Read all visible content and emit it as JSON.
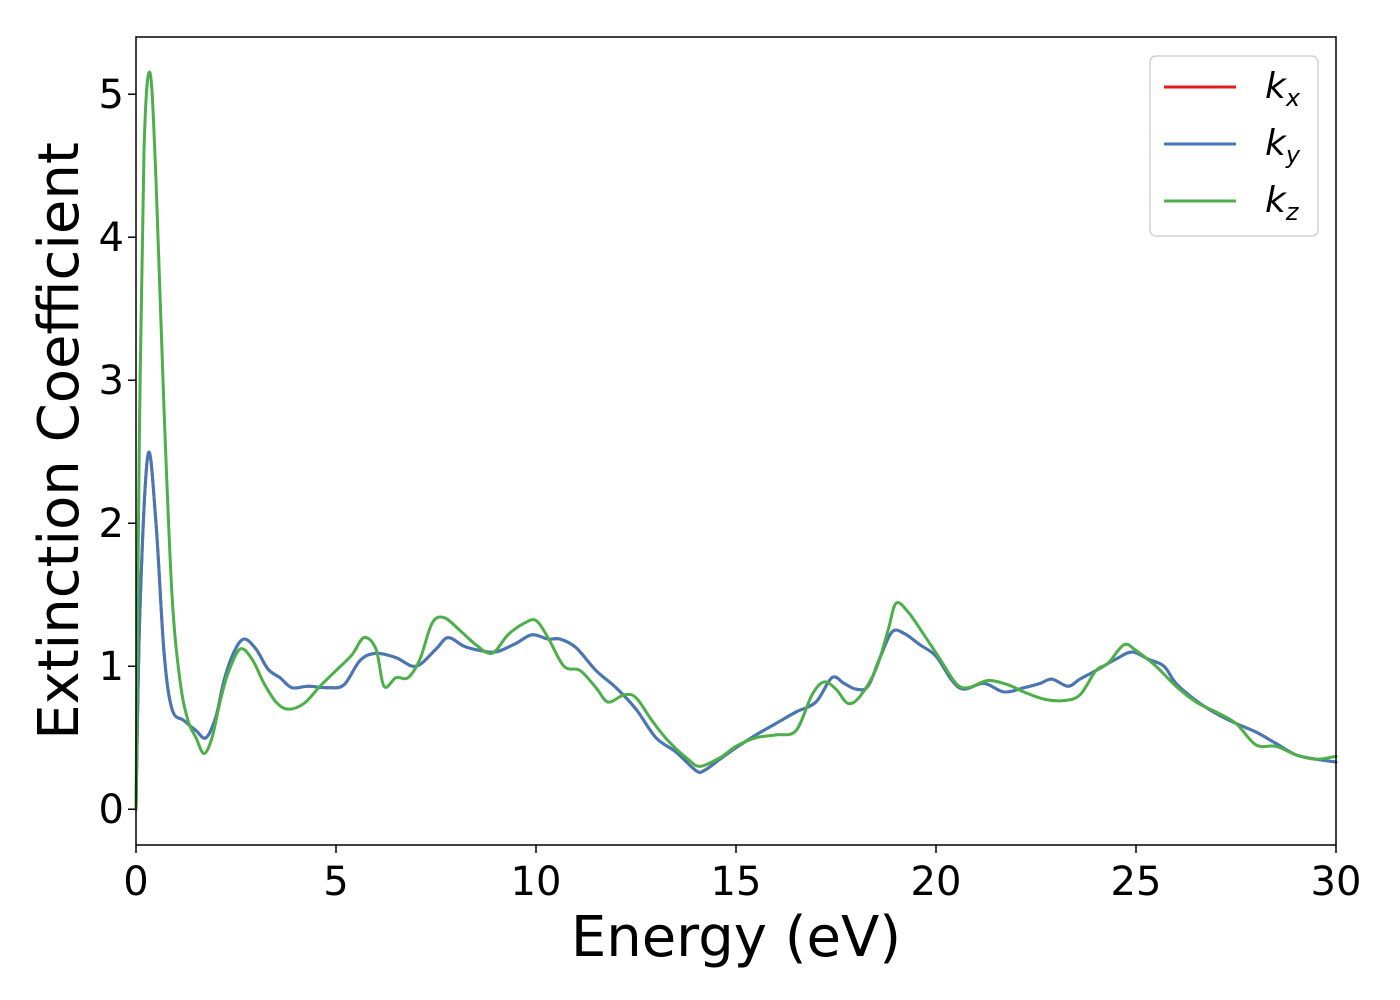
{
  "chart_data": {
    "type": "line",
    "title": "",
    "xlabel": "Energy (eV)",
    "ylabel": "Extinction Coefficient",
    "xlim": [
      0,
      30
    ],
    "ylim": [
      -0.25,
      5.4
    ],
    "xticks": [
      0,
      5,
      10,
      15,
      20,
      25,
      30
    ],
    "yticks": [
      0,
      1,
      2,
      3,
      4,
      5
    ],
    "grid": false,
    "legend_position": "top-right",
    "series": [
      {
        "name": "k_x",
        "legend_base": "k",
        "legend_sub": "x",
        "color": "#e41a1c",
        "points": [
          [
            0,
            0
          ],
          [
            0.1,
            1.4
          ],
          [
            0.3,
            2.48
          ],
          [
            0.5,
            2.0
          ],
          [
            0.7,
            1.1
          ],
          [
            0.9,
            0.7
          ],
          [
            1.2,
            0.62
          ],
          [
            1.5,
            0.55
          ],
          [
            1.75,
            0.5
          ],
          [
            2.0,
            0.65
          ],
          [
            2.2,
            0.9
          ],
          [
            2.45,
            1.1
          ],
          [
            2.7,
            1.19
          ],
          [
            3.0,
            1.12
          ],
          [
            3.3,
            0.98
          ],
          [
            3.6,
            0.92
          ],
          [
            3.9,
            0.85
          ],
          [
            4.3,
            0.86
          ],
          [
            4.8,
            0.85
          ],
          [
            5.2,
            0.87
          ],
          [
            5.6,
            1.04
          ],
          [
            6.0,
            1.09
          ],
          [
            6.5,
            1.06
          ],
          [
            7.0,
            1.0
          ],
          [
            7.5,
            1.12
          ],
          [
            7.8,
            1.2
          ],
          [
            8.2,
            1.14
          ],
          [
            8.6,
            1.11
          ],
          [
            9.0,
            1.1
          ],
          [
            9.5,
            1.16
          ],
          [
            9.9,
            1.22
          ],
          [
            10.3,
            1.19
          ],
          [
            10.6,
            1.19
          ],
          [
            11.0,
            1.13
          ],
          [
            11.5,
            0.97
          ],
          [
            12.0,
            0.85
          ],
          [
            12.5,
            0.7
          ],
          [
            13.0,
            0.5
          ],
          [
            13.5,
            0.4
          ],
          [
            14.0,
            0.27
          ],
          [
            14.2,
            0.27
          ],
          [
            14.6,
            0.35
          ],
          [
            15.0,
            0.43
          ],
          [
            15.5,
            0.52
          ],
          [
            16.0,
            0.6
          ],
          [
            16.5,
            0.68
          ],
          [
            17.0,
            0.75
          ],
          [
            17.4,
            0.92
          ],
          [
            17.7,
            0.88
          ],
          [
            18.0,
            0.84
          ],
          [
            18.3,
            0.86
          ],
          [
            18.6,
            1.06
          ],
          [
            18.9,
            1.24
          ],
          [
            19.2,
            1.23
          ],
          [
            19.6,
            1.15
          ],
          [
            20.0,
            1.07
          ],
          [
            20.4,
            0.9
          ],
          [
            20.7,
            0.84
          ],
          [
            21.2,
            0.88
          ],
          [
            21.7,
            0.82
          ],
          [
            22.2,
            0.85
          ],
          [
            22.6,
            0.88
          ],
          [
            22.9,
            0.91
          ],
          [
            23.3,
            0.86
          ],
          [
            23.6,
            0.91
          ],
          [
            24.0,
            0.97
          ],
          [
            24.5,
            1.05
          ],
          [
            24.9,
            1.1
          ],
          [
            25.3,
            1.05
          ],
          [
            25.7,
            1.0
          ],
          [
            26.0,
            0.88
          ],
          [
            26.5,
            0.76
          ],
          [
            27.0,
            0.67
          ],
          [
            27.5,
            0.6
          ],
          [
            28.0,
            0.54
          ],
          [
            28.5,
            0.46
          ],
          [
            29.0,
            0.38
          ],
          [
            29.5,
            0.35
          ],
          [
            30.0,
            0.33
          ]
        ]
      },
      {
        "name": "k_y",
        "legend_base": "k",
        "legend_sub": "y",
        "color": "#4479b7",
        "points": [
          [
            0,
            0
          ],
          [
            0.1,
            1.4
          ],
          [
            0.3,
            2.48
          ],
          [
            0.5,
            2.0
          ],
          [
            0.7,
            1.1
          ],
          [
            0.9,
            0.7
          ],
          [
            1.2,
            0.62
          ],
          [
            1.5,
            0.55
          ],
          [
            1.75,
            0.5
          ],
          [
            2.0,
            0.65
          ],
          [
            2.2,
            0.9
          ],
          [
            2.45,
            1.1
          ],
          [
            2.7,
            1.19
          ],
          [
            3.0,
            1.12
          ],
          [
            3.3,
            0.98
          ],
          [
            3.6,
            0.92
          ],
          [
            3.9,
            0.85
          ],
          [
            4.3,
            0.86
          ],
          [
            4.8,
            0.85
          ],
          [
            5.2,
            0.87
          ],
          [
            5.6,
            1.04
          ],
          [
            6.0,
            1.09
          ],
          [
            6.5,
            1.06
          ],
          [
            7.0,
            1.0
          ],
          [
            7.5,
            1.12
          ],
          [
            7.8,
            1.2
          ],
          [
            8.2,
            1.14
          ],
          [
            8.6,
            1.11
          ],
          [
            9.0,
            1.1
          ],
          [
            9.5,
            1.16
          ],
          [
            9.9,
            1.22
          ],
          [
            10.3,
            1.19
          ],
          [
            10.6,
            1.19
          ],
          [
            11.0,
            1.13
          ],
          [
            11.5,
            0.97
          ],
          [
            12.0,
            0.85
          ],
          [
            12.5,
            0.7
          ],
          [
            13.0,
            0.5
          ],
          [
            13.5,
            0.4
          ],
          [
            14.0,
            0.27
          ],
          [
            14.2,
            0.27
          ],
          [
            14.6,
            0.35
          ],
          [
            15.0,
            0.43
          ],
          [
            15.5,
            0.52
          ],
          [
            16.0,
            0.6
          ],
          [
            16.5,
            0.68
          ],
          [
            17.0,
            0.75
          ],
          [
            17.4,
            0.92
          ],
          [
            17.7,
            0.88
          ],
          [
            18.0,
            0.84
          ],
          [
            18.3,
            0.86
          ],
          [
            18.6,
            1.06
          ],
          [
            18.9,
            1.24
          ],
          [
            19.2,
            1.23
          ],
          [
            19.6,
            1.15
          ],
          [
            20.0,
            1.07
          ],
          [
            20.4,
            0.9
          ],
          [
            20.7,
            0.84
          ],
          [
            21.2,
            0.88
          ],
          [
            21.7,
            0.82
          ],
          [
            22.2,
            0.85
          ],
          [
            22.6,
            0.88
          ],
          [
            22.9,
            0.91
          ],
          [
            23.3,
            0.86
          ],
          [
            23.6,
            0.91
          ],
          [
            24.0,
            0.97
          ],
          [
            24.5,
            1.05
          ],
          [
            24.9,
            1.1
          ],
          [
            25.3,
            1.05
          ],
          [
            25.7,
            1.0
          ],
          [
            26.0,
            0.88
          ],
          [
            26.5,
            0.76
          ],
          [
            27.0,
            0.67
          ],
          [
            27.5,
            0.6
          ],
          [
            28.0,
            0.54
          ],
          [
            28.5,
            0.46
          ],
          [
            29.0,
            0.38
          ],
          [
            29.5,
            0.35
          ],
          [
            30.0,
            0.33
          ]
        ]
      },
      {
        "name": "k_z",
        "legend_base": "k",
        "legend_sub": "z",
        "color": "#4daf4a",
        "points": [
          [
            0,
            0
          ],
          [
            0.08,
            2.5
          ],
          [
            0.2,
            4.6
          ],
          [
            0.35,
            5.15
          ],
          [
            0.5,
            4.4
          ],
          [
            0.7,
            2.8
          ],
          [
            0.9,
            1.5
          ],
          [
            1.1,
            0.9
          ],
          [
            1.3,
            0.62
          ],
          [
            1.5,
            0.5
          ],
          [
            1.7,
            0.39
          ],
          [
            1.9,
            0.5
          ],
          [
            2.1,
            0.75
          ],
          [
            2.3,
            0.95
          ],
          [
            2.6,
            1.12
          ],
          [
            2.9,
            1.05
          ],
          [
            3.2,
            0.88
          ],
          [
            3.5,
            0.75
          ],
          [
            3.8,
            0.7
          ],
          [
            4.2,
            0.74
          ],
          [
            4.6,
            0.86
          ],
          [
            5.0,
            0.97
          ],
          [
            5.4,
            1.08
          ],
          [
            5.7,
            1.2
          ],
          [
            6.0,
            1.12
          ],
          [
            6.2,
            0.86
          ],
          [
            6.5,
            0.92
          ],
          [
            6.8,
            0.92
          ],
          [
            7.1,
            1.05
          ],
          [
            7.4,
            1.3
          ],
          [
            7.7,
            1.34
          ],
          [
            8.1,
            1.25
          ],
          [
            8.5,
            1.15
          ],
          [
            8.9,
            1.09
          ],
          [
            9.3,
            1.22
          ],
          [
            9.7,
            1.3
          ],
          [
            10.0,
            1.32
          ],
          [
            10.3,
            1.2
          ],
          [
            10.7,
            1.0
          ],
          [
            11.1,
            0.97
          ],
          [
            11.5,
            0.85
          ],
          [
            11.8,
            0.75
          ],
          [
            12.2,
            0.8
          ],
          [
            12.5,
            0.78
          ],
          [
            12.9,
            0.62
          ],
          [
            13.3,
            0.48
          ],
          [
            13.8,
            0.35
          ],
          [
            14.1,
            0.3
          ],
          [
            14.6,
            0.36
          ],
          [
            15.0,
            0.44
          ],
          [
            15.5,
            0.5
          ],
          [
            16.0,
            0.52
          ],
          [
            16.5,
            0.55
          ],
          [
            16.9,
            0.8
          ],
          [
            17.2,
            0.89
          ],
          [
            17.5,
            0.84
          ],
          [
            17.8,
            0.74
          ],
          [
            18.1,
            0.79
          ],
          [
            18.5,
            0.98
          ],
          [
            18.8,
            1.25
          ],
          [
            19.0,
            1.44
          ],
          [
            19.3,
            1.38
          ],
          [
            19.7,
            1.22
          ],
          [
            20.1,
            1.05
          ],
          [
            20.5,
            0.88
          ],
          [
            20.8,
            0.85
          ],
          [
            21.3,
            0.9
          ],
          [
            21.8,
            0.87
          ],
          [
            22.2,
            0.82
          ],
          [
            22.7,
            0.77
          ],
          [
            23.2,
            0.76
          ],
          [
            23.6,
            0.8
          ],
          [
            24.0,
            0.97
          ],
          [
            24.3,
            1.02
          ],
          [
            24.7,
            1.15
          ],
          [
            25.0,
            1.11
          ],
          [
            25.5,
            1.0
          ],
          [
            26.0,
            0.86
          ],
          [
            26.5,
            0.75
          ],
          [
            27.0,
            0.68
          ],
          [
            27.5,
            0.6
          ],
          [
            28.0,
            0.45
          ],
          [
            28.5,
            0.44
          ],
          [
            29.0,
            0.38
          ],
          [
            29.5,
            0.35
          ],
          [
            30.0,
            0.37
          ]
        ]
      }
    ]
  }
}
